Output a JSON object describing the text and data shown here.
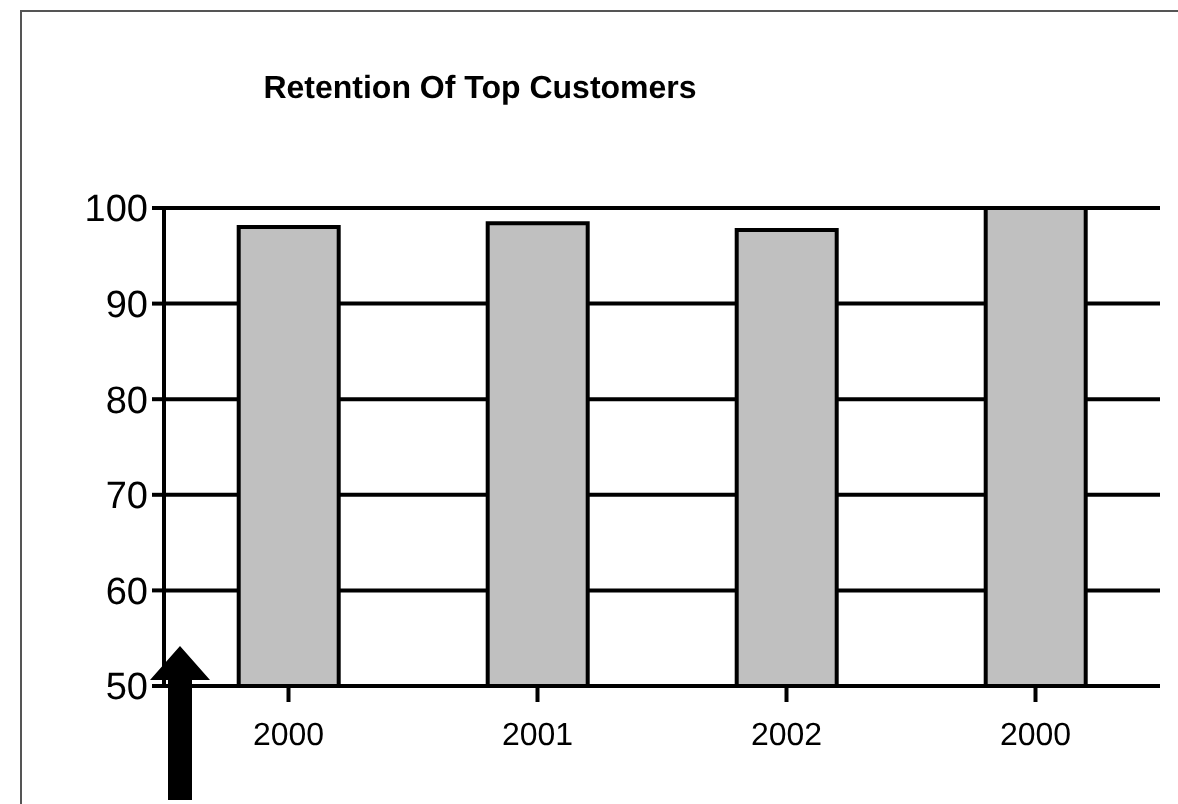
{
  "chart_data": {
    "type": "bar",
    "title": "Retention Of Top Customers",
    "categories": [
      "2000",
      "2001",
      "2002",
      "2000"
    ],
    "values": [
      98,
      98.4,
      97.7,
      100
    ],
    "color": "#c0c0c0",
    "ylim": [
      50,
      100
    ],
    "yticks": [
      50,
      60,
      70,
      80,
      90,
      100
    ],
    "grid": "y",
    "legend": false
  }
}
